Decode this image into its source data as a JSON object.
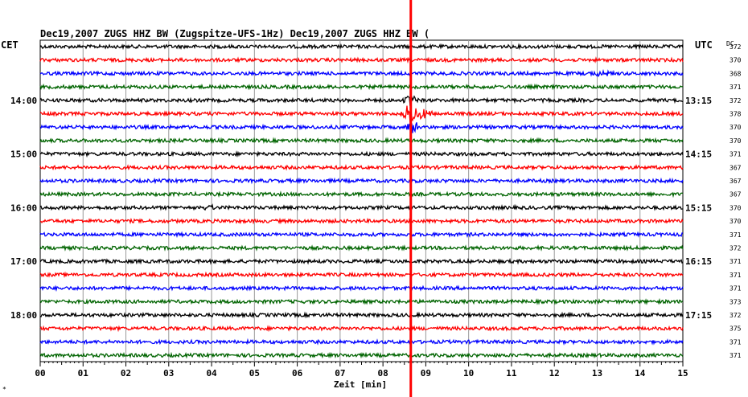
{
  "header": {
    "title": "Dec19,2007   ZUGS HHZ BW (Zugspitze-UFS-1Hz) Dec19,2007   ZUGS HHZ BW (",
    "left_zone": "CET",
    "right_zone": "UTC",
    "dc_label": "DC",
    "corner_mark": "*"
  },
  "chart_data": {
    "type": "line",
    "title": "Dec19,2007   ZUGS HHZ BW (Zugspitze-UFS-1Hz) Dec19,2007   ZUGS HHZ BW (",
    "xlabel": "Zeit [min]",
    "xlim": [
      0,
      15
    ],
    "x_ticks": [
      "00",
      "01",
      "02",
      "03",
      "04",
      "05",
      "06",
      "07",
      "08",
      "09",
      "10",
      "11",
      "12",
      "13",
      "14",
      "15"
    ],
    "rows": 24,
    "row_colors": [
      "#000000",
      "#ff0000",
      "#0000ff",
      "#006400"
    ],
    "left_labels": [
      {
        "row": 4,
        "text": "14:00"
      },
      {
        "row": 8,
        "text": "15:00"
      },
      {
        "row": 12,
        "text": "16:00"
      },
      {
        "row": 16,
        "text": "17:00"
      },
      {
        "row": 20,
        "text": "18:00"
      }
    ],
    "right_labels": [
      {
        "row": 4,
        "text": "13:15"
      },
      {
        "row": 8,
        "text": "14:15"
      },
      {
        "row": 12,
        "text": "15:15"
      },
      {
        "row": 16,
        "text": "16:15"
      },
      {
        "row": 20,
        "text": "17:15"
      }
    ],
    "dc_values": [
      "372",
      "370",
      "368",
      "371",
      "372",
      "378",
      "370",
      "370",
      "371",
      "367",
      "367",
      "367",
      "370",
      "370",
      "371",
      "372",
      "371",
      "371",
      "371",
      "373",
      "372",
      "375",
      "371",
      "371"
    ],
    "marker": {
      "x_min": 8.65,
      "color": "#ff0000"
    },
    "events": [
      {
        "row": 2,
        "x_min": 13.1,
        "amp": 0.5
      },
      {
        "row": 4,
        "x_min": 8.65,
        "amp": 1.0
      },
      {
        "row": 5,
        "x_min": 8.65,
        "amp": 1.6
      },
      {
        "row": 5,
        "x_min": 8.95,
        "amp": 0.8
      },
      {
        "row": 6,
        "x_min": 8.65,
        "amp": 1.0
      },
      {
        "row": 12,
        "x_min": 3.9,
        "amp": 0.4
      }
    ]
  }
}
